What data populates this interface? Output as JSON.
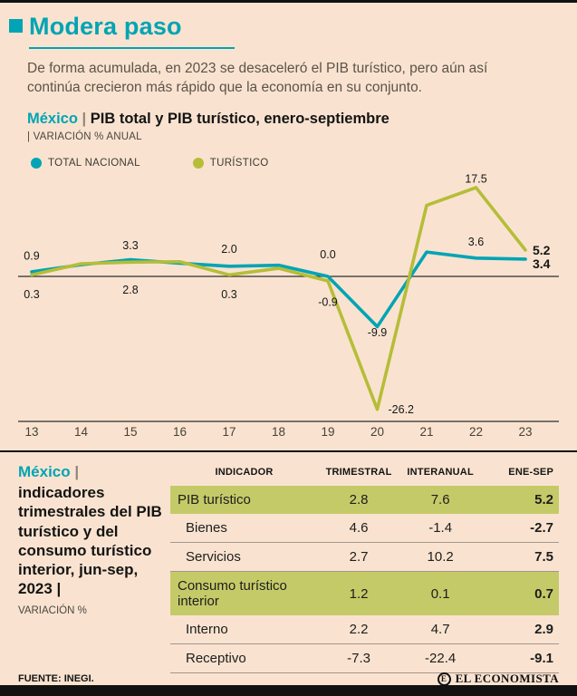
{
  "colors": {
    "background": "#f9e3d0",
    "teal": "#00a4b4",
    "olive": "#b6bd38",
    "table_highlight": "#c5ca68"
  },
  "header": {
    "title": "Modera paso",
    "intro": "De forma acumulada, en 2023 se desaceleró el PIB turístico, pero aún así continúa crecieron más rápido que la economía en su conjunto."
  },
  "chart_section": {
    "region": "México",
    "separator": "|",
    "title": "PIB total y PIB turístico, enero-septiembre",
    "unit": "| VARIACIÓN % ANUAL",
    "legend": [
      "TOTAL NACIONAL",
      "TURÍSTICO"
    ]
  },
  "chart_data": {
    "type": "line",
    "title": "México | PIB total y PIB turístico, enero-septiembre",
    "ylabel": "VARIACIÓN % ANUAL",
    "x_labels": [
      "13",
      "14",
      "15",
      "16",
      "17",
      "18",
      "19",
      "20",
      "21",
      "22",
      "23"
    ],
    "ylim": [
      -28,
      20
    ],
    "zero_line": true,
    "grid": false,
    "legend_position": "top-left",
    "series": [
      {
        "name": "TOTAL NACIONAL",
        "color": "#00a4b4",
        "values": [
          0.9,
          2.3,
          3.3,
          2.6,
          2.0,
          2.2,
          0.0,
          -9.9,
          4.8,
          3.6,
          3.4
        ]
      },
      {
        "name": "TURÍSTICO",
        "color": "#b6bd38",
        "values": [
          0.3,
          2.5,
          2.8,
          2.9,
          0.3,
          1.6,
          -0.9,
          -26.2,
          14.0,
          17.5,
          5.2
        ]
      }
    ],
    "point_labels": [
      {
        "i": 0,
        "text": "0.9",
        "v": 3.3
      },
      {
        "i": 0,
        "text": "0.3",
        "v": -4.3
      },
      {
        "i": 2,
        "text": "3.3",
        "v": 5.4
      },
      {
        "i": 2,
        "text": "2.8",
        "v": -3.4
      },
      {
        "i": 4,
        "text": "2.0",
        "v": 4.6
      },
      {
        "i": 4,
        "text": "0.3",
        "v": -4.3
      },
      {
        "i": 6,
        "text": "0.0",
        "v": 3.6
      },
      {
        "i": 6,
        "text": "-0.9",
        "v": -5.8
      },
      {
        "i": 7,
        "text": "-9.9",
        "v": -11.8
      },
      {
        "i": 7,
        "text": "-26.2",
        "v": -27.0,
        "dx": 12,
        "anchor": "start"
      },
      {
        "i": 9,
        "text": "17.5",
        "v": 18.5
      },
      {
        "i": 9,
        "text": "3.6",
        "v": 6.1
      },
      {
        "i": 10,
        "text": "5.2",
        "v": 4.3,
        "dx": 8,
        "anchor": "start",
        "bold": true
      },
      {
        "i": 10,
        "text": "3.4",
        "v": 1.6,
        "dx": 8,
        "anchor": "start",
        "bold": true
      }
    ]
  },
  "table_section": {
    "region": "México",
    "separator": "|",
    "title": "indicadores trimestrales del PIB turístico y del consumo turístico interior, jun-sep, 2023 |",
    "unit": "VARIACIÓN %",
    "headers": [
      "INDICADOR",
      "TRIMESTRAL",
      "INTERANUAL",
      "ENE-SEP"
    ],
    "rows": [
      {
        "label": "PIB turístico",
        "trimestral": "2.8",
        "interanual": "7.6",
        "ene_sep": "5.2"
      },
      {
        "label": "Bienes",
        "trimestral": "4.6",
        "interanual": "-1.4",
        "ene_sep": "-2.7"
      },
      {
        "label": "Servicios",
        "trimestral": "2.7",
        "interanual": "10.2",
        "ene_sep": "7.5"
      },
      {
        "label": "Consumo turístico interior",
        "trimestral": "1.2",
        "interanual": "0.1",
        "ene_sep": "0.7"
      },
      {
        "label": "Interno",
        "trimestral": "2.2",
        "interanual": "4.7",
        "ene_sep": "2.9"
      },
      {
        "label": "Receptivo",
        "trimestral": "-7.3",
        "interanual": "-22.4",
        "ene_sep": "-9.1"
      }
    ]
  },
  "footer": {
    "source": "FUENTE: INEGI.",
    "brand": "EL ECONOMISTA",
    "brand_initial": "E"
  }
}
